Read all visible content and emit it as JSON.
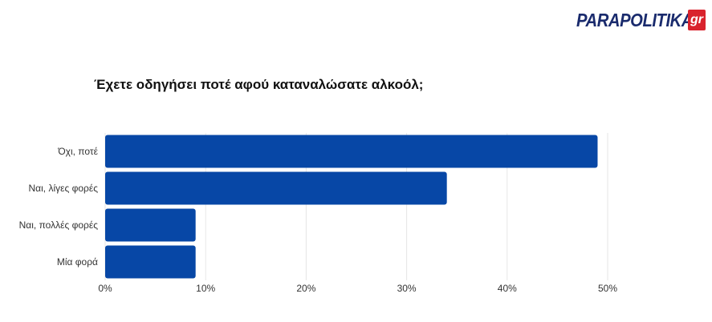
{
  "logo": {
    "text": "PARAPOLITIKA",
    "suffix": "gr",
    "color": "#1a2b6d",
    "accent": "#d9232d"
  },
  "chart_data": {
    "type": "bar",
    "orientation": "horizontal",
    "title": "Έχετε οδηγήσει ποτέ αφού καταναλώσατε αλκοόλ;",
    "categories": [
      "Όχι, ποτέ",
      "Ναι, λίγες φορές",
      "Ναι, πολλές φορές",
      "Μία φορά"
    ],
    "values": [
      49,
      34,
      9,
      9
    ],
    "xlim": [
      0,
      50
    ],
    "xticks": [
      "0%",
      "10%",
      "20%",
      "30%",
      "40%",
      "50%"
    ],
    "grid": true,
    "bar_color": "#0747a6"
  }
}
